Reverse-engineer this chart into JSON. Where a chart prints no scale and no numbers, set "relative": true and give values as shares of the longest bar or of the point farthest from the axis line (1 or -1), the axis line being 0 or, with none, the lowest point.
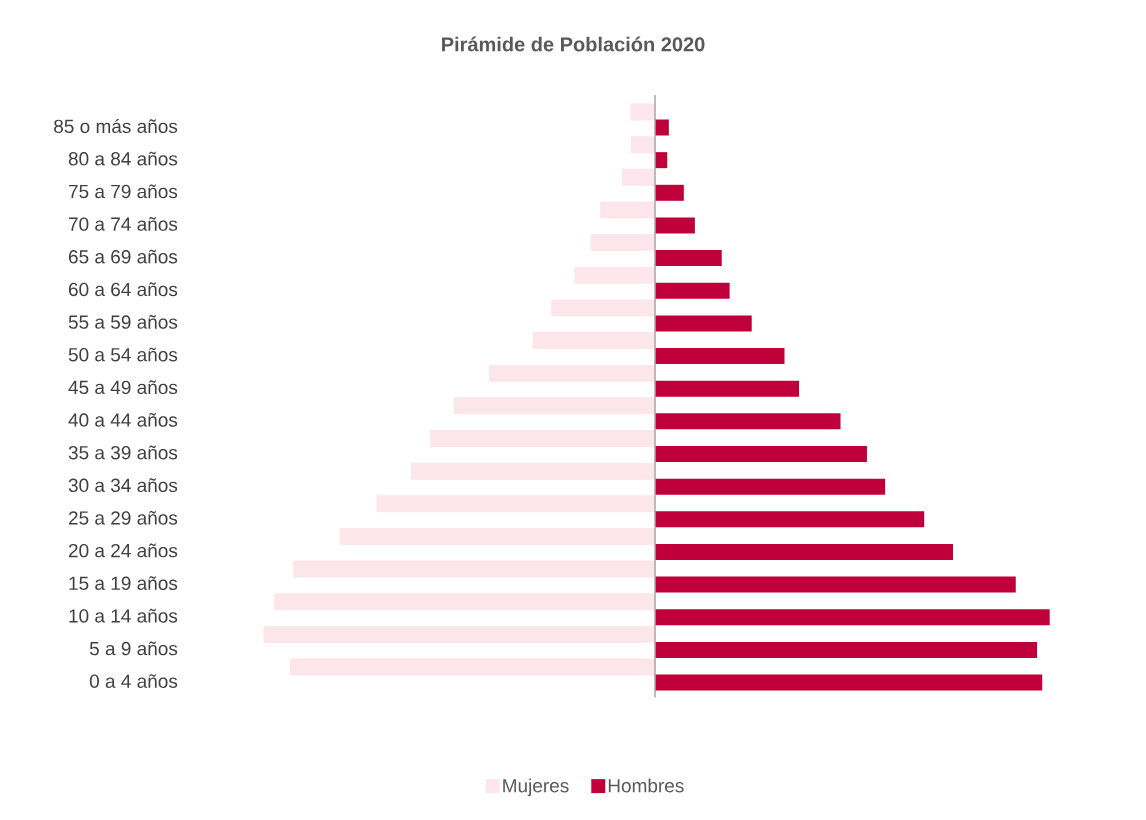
{
  "chart_data": {
    "type": "bar",
    "title": "Pirámide de Población 2020",
    "orientation": "horizontal",
    "relative": true,
    "legend": "bottom",
    "categories": [
      "85 o más años",
      "80 a 84 años",
      "75 a 79 años",
      "70 a 74 años",
      "65 a 69 años",
      "60 a 64 años",
      "55 a 59 años",
      "50 a 54 años",
      "45 a 49 años",
      "40 a 44 años",
      "35 a 39 años",
      "30 a 34 años",
      "25 a 29 años",
      "20 a 24 años",
      "15 a 19 años",
      "10 a 14 años",
      "5 a 9 años",
      "0 a 4 años"
    ],
    "series": [
      {
        "name": "Mujeres",
        "color": "#fde5ec",
        "values": [
          -0.062,
          -0.061,
          -0.084,
          -0.139,
          -0.163,
          -0.204,
          -0.263,
          -0.31,
          -0.421,
          -0.51,
          -0.57,
          -0.618,
          -0.706,
          -0.798,
          -0.917,
          -0.965,
          -0.992,
          -0.925
        ]
      },
      {
        "name": "Hombres",
        "color": "#c0003a",
        "values": [
          0.035,
          0.031,
          0.073,
          0.101,
          0.169,
          0.189,
          0.245,
          0.328,
          0.365,
          0.47,
          0.537,
          0.583,
          0.682,
          0.755,
          0.914,
          1,
          0.968,
          0.981
        ]
      }
    ]
  }
}
